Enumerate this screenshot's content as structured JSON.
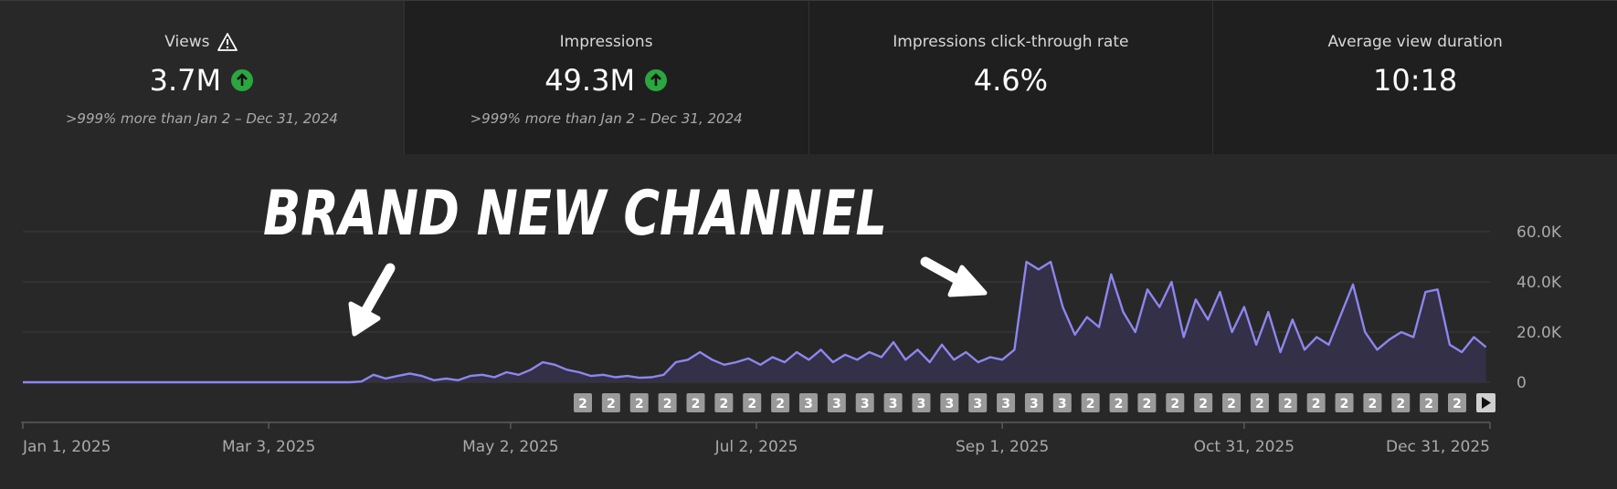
{
  "metrics": [
    {
      "title": "Views",
      "value": "3.7M",
      "comparison": ">999% more than Jan 2 – Dec 31, 2024"
    },
    {
      "title": "Impressions",
      "value": "49.3M",
      "comparison": ">999% more than Jan 2 – Dec 31, 2024"
    },
    {
      "title": "Impressions click-through rate",
      "value": "4.6%"
    },
    {
      "title": "Average view duration",
      "value": "10:18"
    }
  ],
  "chart_data": {
    "type": "area-line",
    "annotation": "BRAND NEW CHANNEL",
    "color": "#8e86ee",
    "x": [
      0,
      3,
      6,
      9,
      12,
      15,
      18,
      21,
      24,
      27,
      30,
      33,
      36,
      39,
      42,
      45,
      48,
      51,
      54,
      57,
      60,
      63,
      66,
      69,
      72,
      75,
      78,
      81,
      84,
      87,
      90,
      93,
      96,
      99,
      102,
      105,
      108,
      111,
      114,
      117,
      120,
      123,
      126,
      129,
      132,
      135,
      138,
      141,
      144,
      147,
      150,
      153,
      156,
      159,
      162,
      165,
      168,
      171,
      174,
      177,
      180,
      183,
      186,
      189,
      192,
      195,
      198,
      201,
      204,
      207,
      210,
      213,
      216,
      219,
      222,
      225,
      228,
      231,
      234,
      237,
      240,
      243,
      246,
      249,
      252,
      255,
      258,
      261,
      264,
      267,
      270,
      273,
      276,
      279,
      282,
      285,
      288,
      291,
      294,
      297,
      300,
      303,
      306,
      309,
      312,
      315,
      318,
      321,
      324,
      327,
      330,
      333,
      336,
      339,
      342,
      345,
      348,
      351,
      354,
      357,
      360,
      363
    ],
    "values": [
      0,
      0,
      0,
      0,
      0,
      0,
      0,
      0,
      0,
      0,
      0,
      0,
      0,
      0,
      0,
      0,
      0,
      0,
      0,
      0,
      0,
      0,
      0,
      0,
      0,
      0,
      0,
      0,
      300,
      3000,
      1500,
      2500,
      3500,
      2500,
      800,
      1500,
      800,
      2500,
      3000,
      2000,
      4000,
      3000,
      5000,
      8000,
      7000,
      5000,
      4000,
      2500,
      3000,
      2000,
      2500,
      1800,
      2000,
      3000,
      8000,
      9000,
      12000,
      9000,
      7000,
      8000,
      9500,
      7000,
      10000,
      8000,
      12000,
      9000,
      13000,
      8000,
      11000,
      9000,
      12000,
      10000,
      16000,
      9000,
      13000,
      8000,
      15000,
      9000,
      12000,
      8000,
      10000,
      9000,
      13000,
      48000,
      45000,
      48000,
      30000,
      19000,
      26000,
      22000,
      43000,
      28000,
      20000,
      37000,
      30000,
      40000,
      18000,
      33000,
      25000,
      36000,
      20000,
      30000,
      15000,
      28000,
      12000,
      25000,
      13000,
      18000,
      15000,
      27000,
      39000,
      20000,
      13000,
      17000,
      20000,
      18000,
      36000,
      37000,
      15000,
      12000,
      18000,
      14000
    ],
    "xlim": [
      0,
      364
    ],
    "xticks": [
      {
        "value": 0,
        "label": "Jan 1, 2025"
      },
      {
        "value": 61,
        "label": "Mar 3, 2025"
      },
      {
        "value": 121,
        "label": "May 2, 2025"
      },
      {
        "value": 182,
        "label": "Jul 2, 2025"
      },
      {
        "value": 243,
        "label": "Sep 1, 2025"
      },
      {
        "value": 303,
        "label": "Oct 31, 2025"
      },
      {
        "value": 364,
        "label": "Dec 31, 2025"
      }
    ],
    "ylim": [
      0,
      60000
    ],
    "yticks": [
      0,
      {
        "value": 20000,
        "label": "20.0K"
      },
      {
        "value": 40000,
        "label": "40.0K"
      },
      {
        "value": 60000,
        "label": "60.0K"
      }
    ],
    "grid": true,
    "video_markers": [
      2,
      2,
      2,
      2,
      2,
      2,
      2,
      2,
      3,
      3,
      3,
      3,
      3,
      3,
      3,
      3,
      3,
      3,
      2,
      2,
      2,
      2,
      2,
      2,
      2,
      2,
      2,
      2,
      2,
      2,
      2,
      2
    ]
  }
}
